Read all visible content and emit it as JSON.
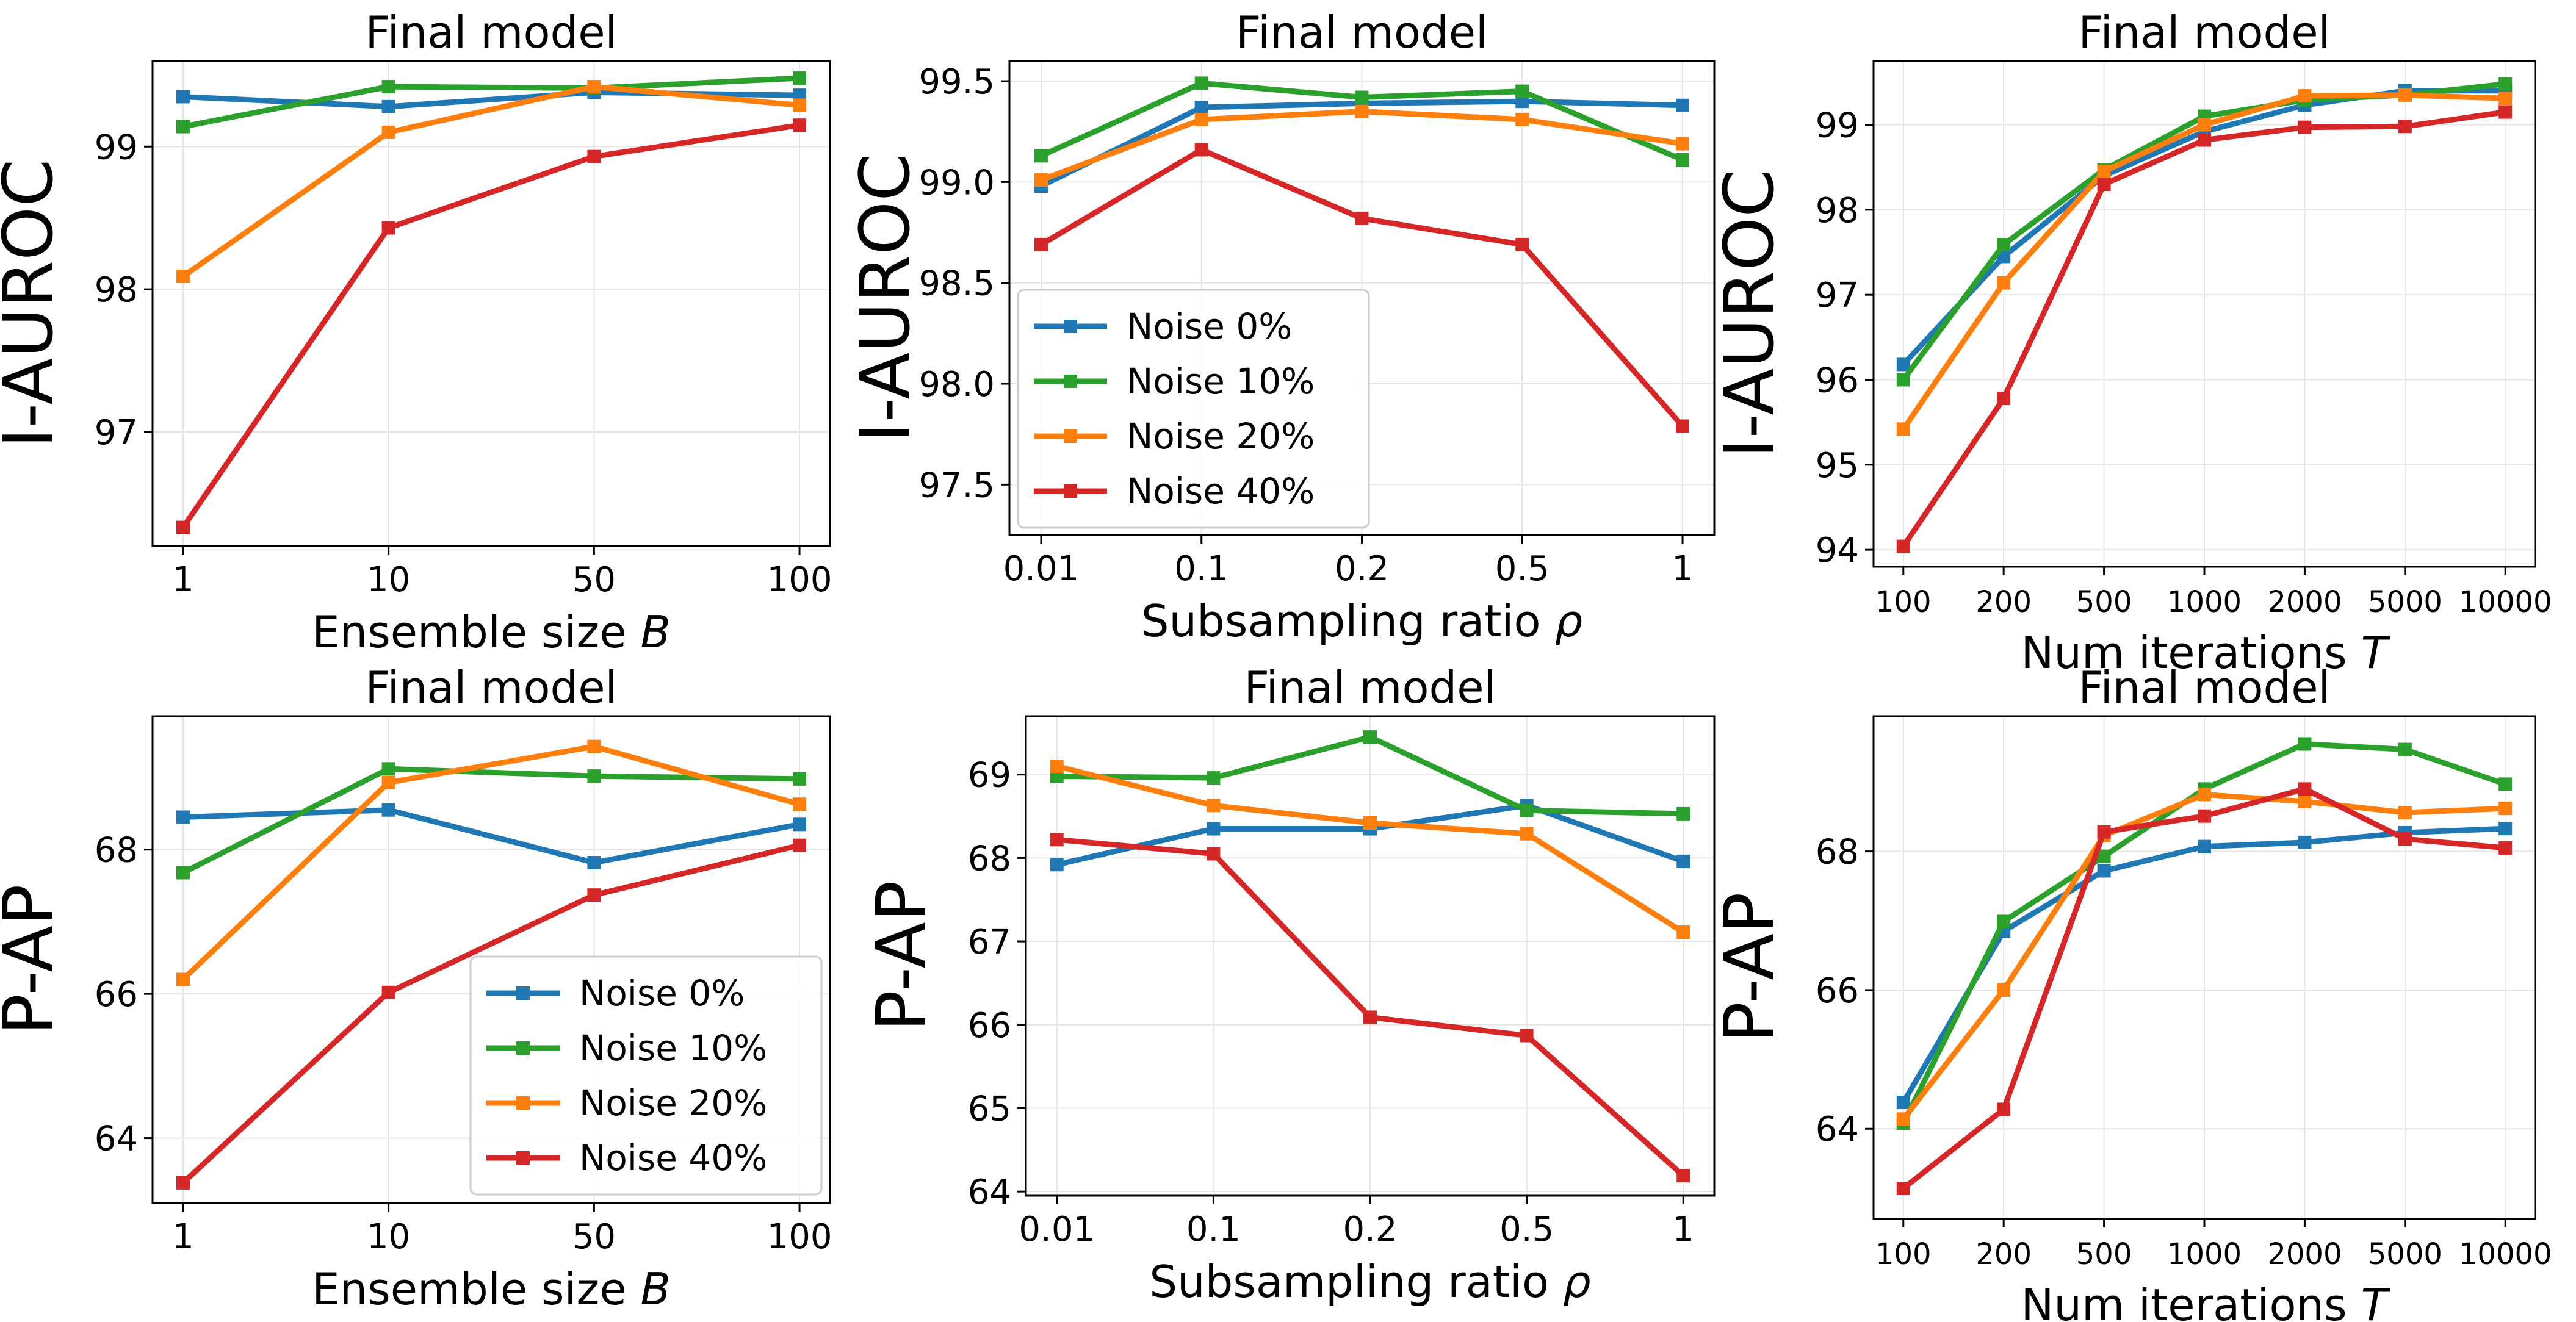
{
  "chart_data": [
    {
      "id": "p1",
      "type": "line",
      "title": "Final model",
      "xlabel": "Ensemble size",
      "xlabel_var": "B",
      "ylabel": "I-AUROC",
      "categories": [
        "1",
        "10",
        "50",
        "100"
      ],
      "ylim": [
        96.2,
        99.6
      ],
      "yticks": [
        97,
        98,
        99
      ],
      "legend": "none",
      "grid": true,
      "series": [
        {
          "name": "Noise 0%",
          "color": "#1f77b4",
          "values": [
            99.35,
            99.28,
            99.38,
            99.36
          ]
        },
        {
          "name": "Noise 10%",
          "color": "#2ca02c",
          "values": [
            99.14,
            99.42,
            99.41,
            99.48
          ]
        },
        {
          "name": "Noise 20%",
          "color": "#ff7f0e",
          "values": [
            98.09,
            99.1,
            99.42,
            99.29
          ]
        },
        {
          "name": "Noise 40%",
          "color": "#d62728",
          "values": [
            96.33,
            98.43,
            98.93,
            99.15
          ]
        }
      ]
    },
    {
      "id": "p2",
      "type": "line",
      "title": "Final model",
      "xlabel": "Subsampling ratio",
      "xlabel_var": "ρ",
      "ylabel": "I-AUROC",
      "categories": [
        "0.01",
        "0.1",
        "0.2",
        "0.5",
        "1"
      ],
      "ylim": [
        97.25,
        99.6
      ],
      "yticks": [
        97.5,
        98.0,
        98.5,
        99.0,
        99.5
      ],
      "ytick_decimals": 1,
      "legend": "center-left",
      "grid": true,
      "series": [
        {
          "name": "Noise 0%",
          "color": "#1f77b4",
          "values": [
            98.98,
            99.37,
            99.39,
            99.4,
            99.38
          ]
        },
        {
          "name": "Noise 10%",
          "color": "#2ca02c",
          "values": [
            99.13,
            99.49,
            99.42,
            99.45,
            99.11
          ]
        },
        {
          "name": "Noise 20%",
          "color": "#ff7f0e",
          "values": [
            99.01,
            99.31,
            99.35,
            99.31,
            99.19
          ]
        },
        {
          "name": "Noise 40%",
          "color": "#d62728",
          "values": [
            98.69,
            99.16,
            98.82,
            98.69,
            97.79
          ]
        }
      ]
    },
    {
      "id": "p3",
      "type": "line",
      "title": "Final model",
      "xlabel": "Num iterations",
      "xlabel_var": "T",
      "ylabel": "I-AUROC",
      "categories": [
        "100",
        "200",
        "500",
        "1000",
        "2000",
        "5000",
        "10000"
      ],
      "small_xticks": true,
      "ylim": [
        93.8,
        99.75
      ],
      "yticks": [
        94,
        95,
        96,
        97,
        98,
        99
      ],
      "legend": "none",
      "grid": true,
      "series": [
        {
          "name": "Noise 0%",
          "color": "#1f77b4",
          "values": [
            96.18,
            97.45,
            98.4,
            98.92,
            99.23,
            99.4,
            99.4
          ]
        },
        {
          "name": "Noise 10%",
          "color": "#2ca02c",
          "values": [
            96.0,
            97.59,
            98.47,
            99.1,
            99.29,
            99.35,
            99.48
          ]
        },
        {
          "name": "Noise 20%",
          "color": "#ff7f0e",
          "values": [
            95.42,
            97.14,
            98.45,
            99.0,
            99.34,
            99.35,
            99.31
          ]
        },
        {
          "name": "Noise 40%",
          "color": "#d62728",
          "values": [
            94.04,
            95.78,
            98.3,
            98.82,
            98.97,
            98.98,
            99.15
          ]
        }
      ]
    },
    {
      "id": "p4",
      "type": "line",
      "title": "Final model",
      "xlabel": "Ensemble size",
      "xlabel_var": "B",
      "ylabel": "P-AP",
      "categories": [
        "1",
        "10",
        "50",
        "100"
      ],
      "ylim": [
        63.1,
        69.85
      ],
      "yticks": [
        64,
        66,
        68
      ],
      "legend": "bottom-right",
      "grid": true,
      "series": [
        {
          "name": "Noise 0%",
          "color": "#1f77b4",
          "values": [
            68.45,
            68.55,
            67.82,
            68.35
          ]
        },
        {
          "name": "Noise 10%",
          "color": "#2ca02c",
          "values": [
            67.68,
            69.12,
            69.02,
            68.98
          ]
        },
        {
          "name": "Noise 20%",
          "color": "#ff7f0e",
          "values": [
            66.2,
            68.93,
            69.43,
            68.63
          ]
        },
        {
          "name": "Noise 40%",
          "color": "#d62728",
          "values": [
            63.38,
            66.02,
            67.37,
            68.06
          ]
        }
      ]
    },
    {
      "id": "p5",
      "type": "line",
      "title": "Final model",
      "xlabel": "Subsampling ratio",
      "xlabel_var": "ρ",
      "ylabel": "P-AP",
      "categories": [
        "0.01",
        "0.1",
        "0.2",
        "0.5",
        "1"
      ],
      "ylim": [
        63.95,
        69.7
      ],
      "yticks": [
        64,
        65,
        66,
        67,
        68,
        69
      ],
      "legend": "none",
      "grid": true,
      "series": [
        {
          "name": "Noise 0%",
          "color": "#1f77b4",
          "values": [
            67.92,
            68.35,
            68.35,
            68.63,
            67.96
          ]
        },
        {
          "name": "Noise 10%",
          "color": "#2ca02c",
          "values": [
            68.98,
            68.96,
            69.45,
            68.57,
            68.53
          ]
        },
        {
          "name": "Noise 20%",
          "color": "#ff7f0e",
          "values": [
            69.1,
            68.63,
            68.42,
            68.29,
            67.11
          ]
        },
        {
          "name": "Noise 40%",
          "color": "#d62728",
          "values": [
            68.22,
            68.05,
            66.09,
            65.87,
            64.19
          ]
        }
      ]
    },
    {
      "id": "p6",
      "type": "line",
      "title": "Final model",
      "xlabel": "Num iterations",
      "xlabel_var": "T",
      "ylabel": "P-AP",
      "categories": [
        "100",
        "200",
        "500",
        "1000",
        "2000",
        "5000",
        "10000"
      ],
      "small_xticks": true,
      "ylim": [
        62.7,
        69.95
      ],
      "yticks": [
        64,
        66,
        68
      ],
      "legend": "none",
      "grid": true,
      "series": [
        {
          "name": "Noise 0%",
          "color": "#1f77b4",
          "values": [
            64.38,
            66.85,
            67.72,
            68.07,
            68.13,
            68.27,
            68.33
          ]
        },
        {
          "name": "Noise 10%",
          "color": "#2ca02c",
          "values": [
            64.08,
            66.99,
            67.93,
            68.9,
            69.55,
            69.47,
            68.97
          ]
        },
        {
          "name": "Noise 20%",
          "color": "#ff7f0e",
          "values": [
            64.14,
            66.0,
            68.23,
            68.82,
            68.72,
            68.56,
            68.62
          ]
        },
        {
          "name": "Noise 40%",
          "color": "#d62728",
          "values": [
            63.14,
            64.28,
            68.28,
            68.51,
            68.9,
            68.18,
            68.05
          ]
        }
      ]
    }
  ]
}
